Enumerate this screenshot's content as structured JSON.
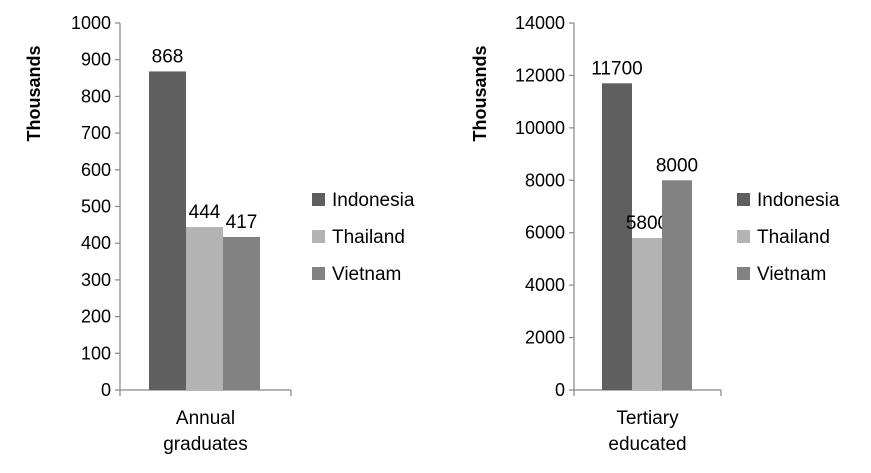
{
  "chart_data": [
    {
      "type": "bar",
      "title": "",
      "categories": [
        "Annual graduates"
      ],
      "category_lines": [
        "Annual",
        "graduates"
      ],
      "ylabel": "Thousands",
      "xlabel": "",
      "ylim": [
        0,
        1000
      ],
      "yticks": [
        0,
        100,
        200,
        300,
        400,
        500,
        600,
        700,
        800,
        900,
        1000
      ],
      "series": [
        {
          "name": "Indonesia",
          "values": [
            868
          ],
          "color": "#5f5f5f"
        },
        {
          "name": "Thailand",
          "values": [
            444
          ],
          "color": "#b3b3b3"
        },
        {
          "name": "Vietnam",
          "values": [
            417
          ],
          "color": "#828282"
        }
      ],
      "grid": false,
      "legend": "right"
    },
    {
      "type": "bar",
      "title": "",
      "categories": [
        "Tertiary educated"
      ],
      "category_lines": [
        "Tertiary",
        "educated"
      ],
      "ylabel": "Thousands",
      "xlabel": "",
      "ylim": [
        0,
        14000
      ],
      "yticks": [
        0,
        2000,
        4000,
        6000,
        8000,
        10000,
        12000,
        14000
      ],
      "series": [
        {
          "name": "Indonesia",
          "values": [
            11700
          ],
          "color": "#5f5f5f"
        },
        {
          "name": "Thailand",
          "values": [
            5800
          ],
          "color": "#b3b3b3"
        },
        {
          "name": "Vietnam",
          "values": [
            8000
          ],
          "color": "#828282"
        }
      ],
      "grid": false,
      "legend": "right"
    }
  ]
}
